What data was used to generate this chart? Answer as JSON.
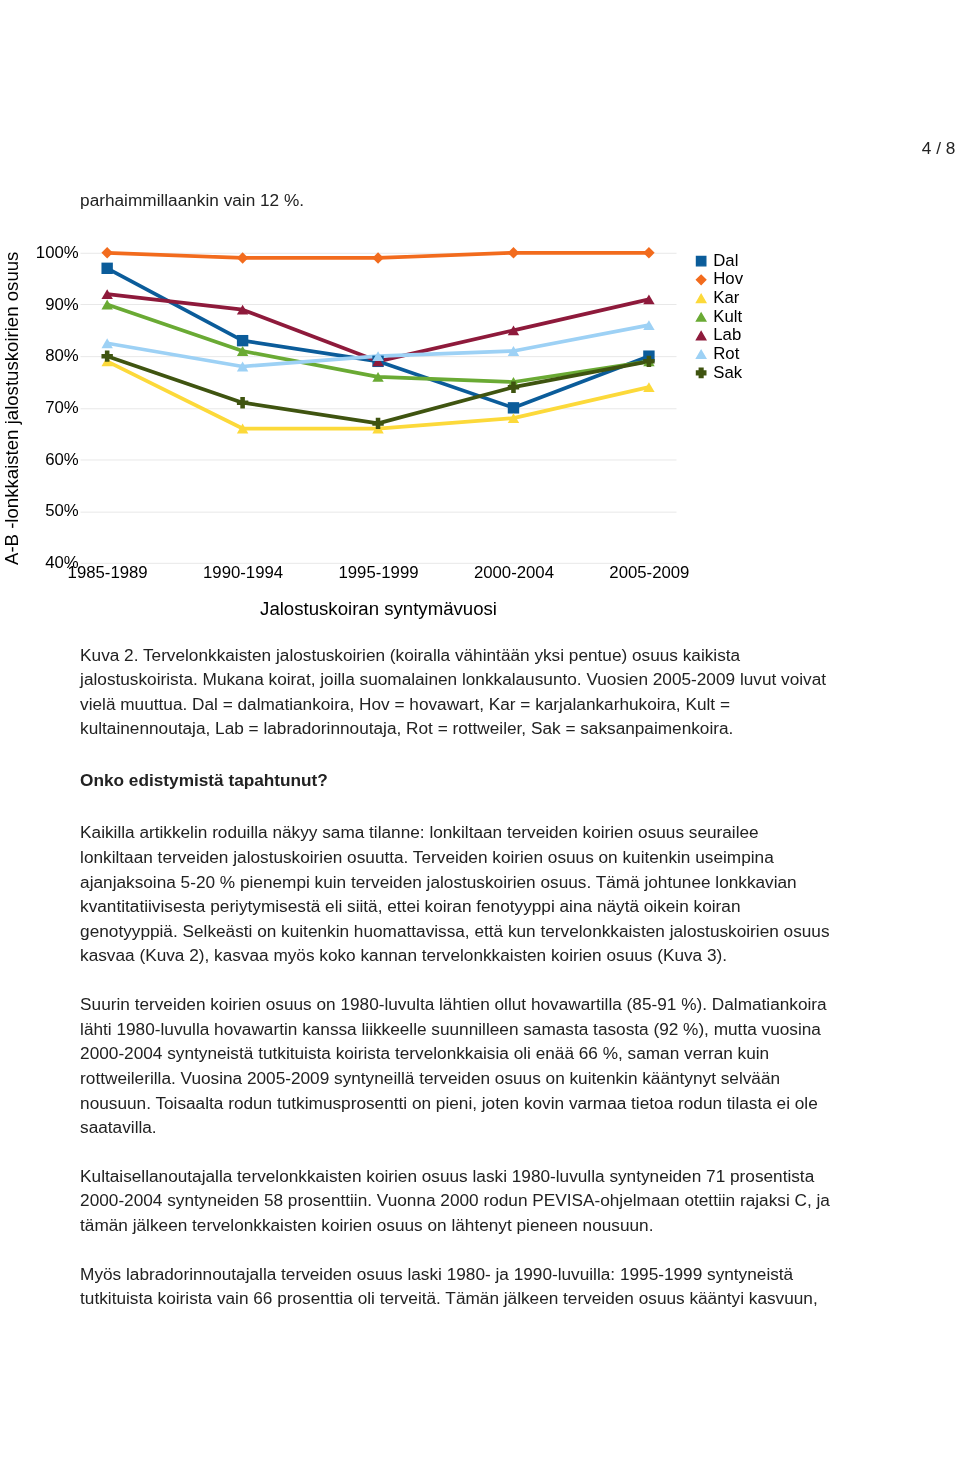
{
  "chart_data": {
    "type": "line",
    "xlabel": "Jalostuskoiran syntymävuosi",
    "ylabel": "A-B -lonkkaisten jalostuskoirien osuus",
    "categories": [
      "1985-1989",
      "1990-1994",
      "1995-1999",
      "2000-2004",
      "2005-2009"
    ],
    "series": [
      {
        "name": "Dal",
        "color": "#0b5c9a",
        "marker": "square",
        "values": [
          97,
          83,
          79,
          70,
          80
        ]
      },
      {
        "name": "Hov",
        "color": "#f26b1d",
        "marker": "diamond",
        "values": [
          100,
          99,
          99,
          100,
          100
        ]
      },
      {
        "name": "Kar",
        "color": "#fcd93a",
        "marker": "triangle",
        "values": [
          79,
          66,
          66,
          68,
          74
        ]
      },
      {
        "name": "Kult",
        "color": "#6aaa34",
        "marker": "triangle",
        "values": [
          90,
          81,
          76,
          75,
          79
        ]
      },
      {
        "name": "Lab",
        "color": "#8e1a3b",
        "marker": "triangle",
        "values": [
          92,
          89,
          79,
          85,
          91
        ]
      },
      {
        "name": "Rot",
        "color": "#9dd1f5",
        "marker": "triangle",
        "values": [
          82.5,
          78,
          80,
          81,
          86
        ]
      },
      {
        "name": "Sak",
        "color": "#3f5410",
        "marker": "cross",
        "values": [
          80,
          71,
          67,
          74,
          79
        ]
      }
    ],
    "ylim": [
      40,
      100
    ],
    "yticks": [
      {
        "value": 40,
        "label": "40%"
      },
      {
        "value": 50,
        "label": "50%"
      },
      {
        "value": 60,
        "label": "60%"
      },
      {
        "value": 70,
        "label": "70%"
      },
      {
        "value": 80,
        "label": "80%"
      },
      {
        "value": 90,
        "label": "90%"
      },
      {
        "value": 100,
        "label": "100%"
      }
    ],
    "grid": "y",
    "legend": "right",
    "line_style": "solid",
    "annotations": [
      "4 / 8",
      "parhaimmillaankin vain 12 %.",
      "Kuva 2. Tervelonkkaisten jalostuskoirien (koiralla vähintään yksi pentue) osuus kaikista jalostuskoirista. Mukana koirat, joilla suomalainen lonkkalausunto. Vuosien 2005-2009 luvut voivat vielä muuttua. Dal = dalmatiankoira, Hov = hovawart, Kar = karjalankarhukoira, Kult = kultainennoutaja, Lab = labradorinnoutaja, Rot = rottweiler, Sak = saksanpaimenkoira.",
      "Onko edistymistä tapahtunut?",
      "Kaikilla artikkelin roduilla näkyy sama tilanne: lonkiltaan terveiden koirien osuus seurailee lonkiltaan terveiden jalostuskoirien osuutta. Terveiden koirien osuus on kuitenkin useimpina ajanjaksoina 5-20 % pienempi kuin terveiden jalostuskoirien osuus. Tämä johtunee lonkkavian kvantitatiivisesta periytymisestä eli siitä, ettei koiran fenotyyppi aina näytä oikein koiran genotyyppiä. Selkeästi on kuitenkin huomattavissa, että kun tervelonkkaisten jalostuskoirien osuus kasvaa (Kuva 2), kasvaa myös koko kannan tervelonkkaisten koirien osuus (Kuva 3).",
      "Suurin terveiden koirien osuus on 1980-luvulta lähtien ollut hovawartilla (85-91 %). Dalmatiankoira lähti 1980-luvulla hovawartin kanssa liikkeelle suunnilleen samasta tasosta (92 %), mutta vuosina 2000-2004 syntyneistä tutkituista koirista tervelonkkaisia oli enää 66 %, saman verran kuin rottweilerilla. Vuosina 2005-2009 syntyneillä terveiden osuus on kuitenkin kääntynyt selvään nousuun. Toisaalta rodun tutkimusprosentti on pieni, joten kovin varmaa tietoa rodun tilasta ei ole saatavilla.",
      "Kultaisellanoutajalla tervelonkkaisten koirien osuus laski 1980-luvulla syntyneiden 71 prosentista 2000-2004 syntyneiden 58 prosenttiin. Vuonna 2000 rodun PEVISA-ohjelmaan otettiin rajaksi C, ja tämän jälkeen tervelonkkaisten koirien osuus on lähtenyt pieneen nousuun.",
      "Myös labradorinnoutajalla terveiden osuus laski 1980- ja 1990-luvuilla: 1995-1999 syntyneistä tutkituista koirista vain 66 prosenttia oli terveitä. Tämän jälkeen terveiden osuus kääntyi kasvuun,"
    ]
  }
}
